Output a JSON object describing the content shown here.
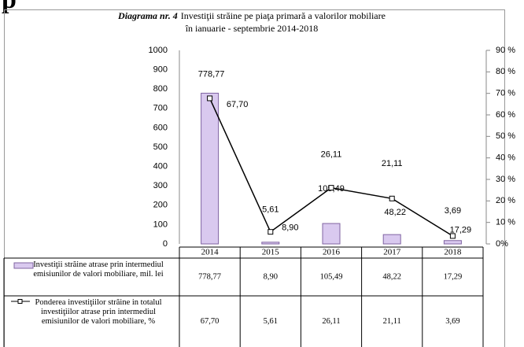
{
  "page_fragment": "p",
  "chart_data": {
    "type": "bar",
    "title": {
      "label": "Diagrama nr. 4",
      "lines": [
        "Investiţii străine  pe piaţa primară a valorilor mobiliare",
        "în ianuarie  - septembrie 2014-2018"
      ]
    },
    "categories": [
      "2014",
      "2015",
      "2016",
      "2017",
      "2018"
    ],
    "series": [
      {
        "name": "Investiţii străine atrase prin intermediul emisiunilor de valori mobiliare, mil. lei",
        "type": "bar",
        "color": "#d9c9ef",
        "edge_color": "#8064a2",
        "values": [
          778.77,
          8.9,
          105.49,
          48.22,
          17.29
        ],
        "value_labels": [
          "778,77",
          "8,90",
          "105,49",
          "48,22",
          "17,29"
        ]
      },
      {
        "name": "Ponderea investiţiilor străine in totalul investiţiilor atrase prin intermediul emisiunilor de valori mobiliare, %",
        "type": "line",
        "axis": "y2",
        "color": "#000000",
        "values": [
          67.7,
          5.61,
          26.11,
          21.11,
          3.69
        ],
        "value_labels": [
          "67,70",
          "5,61",
          "26,11",
          "21,11",
          "3,69"
        ]
      }
    ],
    "ylim": [
      0,
      1000
    ],
    "yticks": [
      0,
      100,
      200,
      300,
      400,
      500,
      600,
      700,
      800,
      900,
      1000
    ],
    "y2lim": [
      0,
      90
    ],
    "y2ticks": [
      {
        "value": 0,
        "label": "0%"
      },
      {
        "value": 10,
        "label": "10 %"
      },
      {
        "value": 20,
        "label": "20 %"
      },
      {
        "value": 30,
        "label": "30 %"
      },
      {
        "value": 40,
        "label": "40 %"
      },
      {
        "value": 50,
        "label": "50 %"
      },
      {
        "value": 60,
        "label": "60 %"
      },
      {
        "value": 70,
        "label": "70 %"
      },
      {
        "value": 80,
        "label": "80 %"
      },
      {
        "value": 90,
        "label": "90 %"
      }
    ],
    "grid": false,
    "data_table": true
  }
}
